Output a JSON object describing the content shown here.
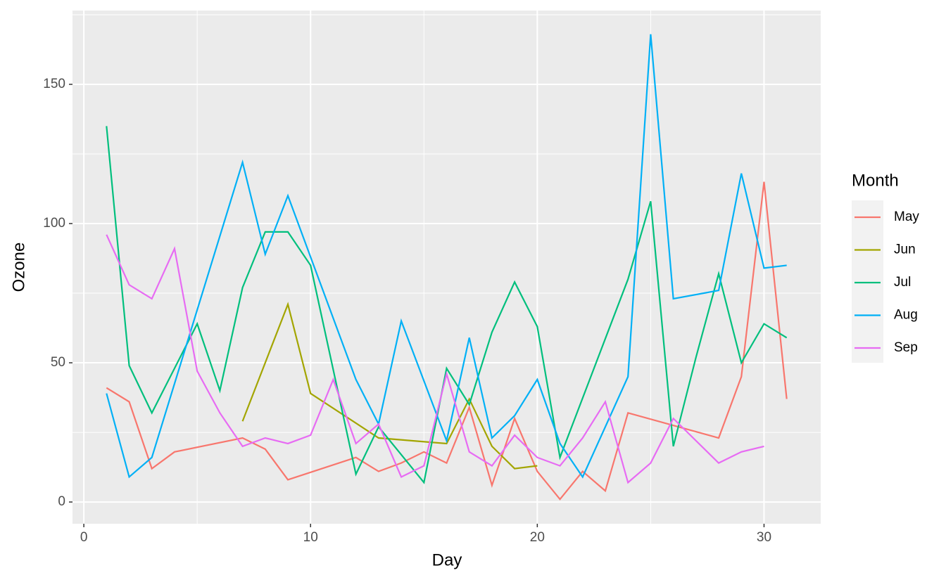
{
  "chart_data": {
    "type": "line",
    "x_label": "Day",
    "y_label": "Ozone",
    "legend_title": "Month",
    "xlim": [
      -0.5,
      32.5
    ],
    "ylim": [
      -7.8,
      176.5
    ],
    "xticks": [
      0,
      10,
      20,
      30
    ],
    "yticks": [
      0,
      50,
      100,
      150
    ],
    "grid": true,
    "legend": "right",
    "series": [
      {
        "name": "May",
        "color": "#F8766D",
        "x": [
          1,
          2,
          3,
          4,
          7,
          8,
          9,
          12,
          13,
          14,
          15,
          16,
          17,
          18,
          19,
          20,
          21,
          22,
          23,
          24,
          28,
          29,
          30,
          31
        ],
        "values": [
          41,
          36,
          12,
          18,
          23,
          19,
          8,
          16,
          11,
          14,
          18,
          14,
          34,
          6,
          30,
          11,
          1,
          11,
          4,
          32,
          23,
          45,
          115,
          37
        ]
      },
      {
        "name": "Jun",
        "color": "#A3A500",
        "x": [
          7,
          9,
          10,
          13,
          16,
          17,
          18,
          19,
          20
        ],
        "values": [
          29,
          71,
          39,
          23,
          21,
          37,
          20,
          12,
          13
        ]
      },
      {
        "name": "Jul",
        "color": "#00BF7D",
        "x": [
          1,
          2,
          3,
          5,
          6,
          7,
          8,
          9,
          10,
          12,
          13,
          15,
          16,
          17,
          18,
          19,
          20,
          21,
          24,
          25,
          26,
          27,
          28,
          29,
          30,
          31
        ],
        "values": [
          135,
          49,
          32,
          64,
          40,
          77,
          97,
          97,
          85,
          10,
          27,
          7,
          48,
          35,
          61,
          79,
          63,
          16,
          80,
          108,
          20,
          52,
          82,
          50,
          64,
          59
        ]
      },
      {
        "name": "Aug",
        "color": "#00B0F6",
        "x": [
          1,
          2,
          3,
          7,
          8,
          9,
          12,
          13,
          14,
          16,
          17,
          18,
          19,
          20,
          21,
          22,
          24,
          25,
          26,
          28,
          29,
          30,
          31
        ],
        "values": [
          39,
          9,
          16,
          122,
          89,
          110,
          44,
          28,
          65,
          22,
          59,
          23,
          31,
          44,
          21,
          9,
          45,
          168,
          73,
          76,
          118,
          84,
          85
        ]
      },
      {
        "name": "Sep",
        "color": "#E76BF3",
        "x": [
          1,
          2,
          3,
          4,
          5,
          6,
          7,
          8,
          9,
          10,
          11,
          12,
          13,
          14,
          15,
          16,
          17,
          18,
          19,
          20,
          21,
          22,
          23,
          24,
          25,
          26,
          28,
          29,
          30
        ],
        "values": [
          96,
          78,
          73,
          91,
          47,
          32,
          20,
          23,
          21,
          24,
          44,
          21,
          28,
          9,
          13,
          46,
          18,
          13,
          24,
          16,
          13,
          23,
          36,
          7,
          14,
          30,
          14,
          18,
          20
        ]
      }
    ]
  }
}
